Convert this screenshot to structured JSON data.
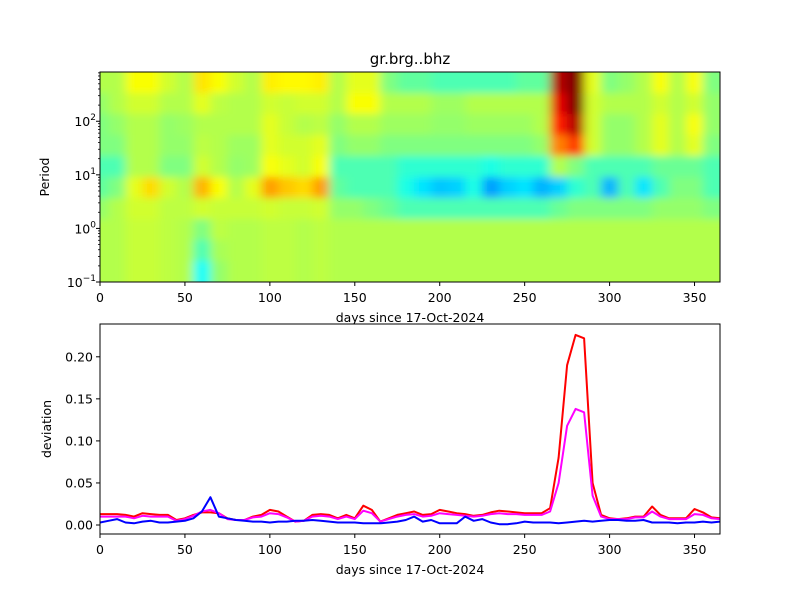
{
  "chart_data": [
    {
      "type": "heatmap",
      "title": "gr.brg..bhz",
      "xlabel": "days since 17-Oct-2024",
      "ylabel": "Period",
      "xlim": [
        0,
        365
      ],
      "ylim": [
        0.1,
        830
      ],
      "yscale": "log",
      "xticks": [
        "0",
        "50",
        "100",
        "150",
        "200",
        "250",
        "300",
        "350"
      ],
      "yticks": [
        {
          "base": "10",
          "exp": "−1"
        },
        {
          "base": "10",
          "exp": "0"
        },
        {
          "base": "10",
          "exp": "1"
        },
        {
          "base": "10",
          "exp": "2"
        }
      ],
      "colormap": "jet",
      "days": [
        0,
        10,
        20,
        30,
        40,
        50,
        60,
        70,
        80,
        90,
        100,
        110,
        120,
        130,
        140,
        150,
        160,
        170,
        180,
        190,
        200,
        210,
        220,
        230,
        240,
        250,
        260,
        270,
        280,
        290,
        300,
        310,
        320,
        330,
        340,
        350,
        360
      ],
      "periods": [
        500,
        200,
        60,
        25,
        12,
        7,
        3,
        1,
        0.3,
        0.12
      ],
      "values": [
        [
          0.55,
          0.55,
          0.62,
          0.62,
          0.58,
          0.55,
          0.65,
          0.62,
          0.58,
          0.55,
          0.64,
          0.63,
          0.63,
          0.64,
          0.55,
          0.6,
          0.6,
          0.5,
          0.47,
          0.47,
          0.45,
          0.45,
          0.45,
          0.45,
          0.45,
          0.47,
          0.47,
          0.95,
          1.0,
          0.6,
          0.5,
          0.52,
          0.55,
          0.62,
          0.55,
          0.62,
          0.5
        ],
        [
          0.52,
          0.55,
          0.58,
          0.58,
          0.55,
          0.55,
          0.6,
          0.56,
          0.55,
          0.55,
          0.58,
          0.57,
          0.58,
          0.58,
          0.55,
          0.62,
          0.62,
          0.55,
          0.55,
          0.55,
          0.53,
          0.53,
          0.55,
          0.55,
          0.55,
          0.55,
          0.55,
          0.9,
          1.0,
          0.58,
          0.55,
          0.55,
          0.55,
          0.58,
          0.55,
          0.58,
          0.52
        ],
        [
          0.5,
          0.52,
          0.55,
          0.55,
          0.52,
          0.53,
          0.55,
          0.55,
          0.55,
          0.55,
          0.6,
          0.57,
          0.55,
          0.56,
          0.52,
          0.55,
          0.55,
          0.53,
          0.53,
          0.53,
          0.52,
          0.52,
          0.53,
          0.53,
          0.53,
          0.53,
          0.55,
          0.85,
          0.95,
          0.58,
          0.52,
          0.52,
          0.55,
          0.6,
          0.55,
          0.62,
          0.52
        ],
        [
          0.5,
          0.5,
          0.55,
          0.55,
          0.52,
          0.52,
          0.56,
          0.55,
          0.53,
          0.53,
          0.6,
          0.58,
          0.58,
          0.6,
          0.5,
          0.52,
          0.52,
          0.5,
          0.5,
          0.5,
          0.5,
          0.5,
          0.5,
          0.5,
          0.5,
          0.5,
          0.52,
          0.75,
          0.82,
          0.58,
          0.52,
          0.52,
          0.55,
          0.6,
          0.55,
          0.6,
          0.5
        ],
        [
          0.45,
          0.45,
          0.55,
          0.55,
          0.5,
          0.5,
          0.58,
          0.55,
          0.52,
          0.53,
          0.62,
          0.6,
          0.58,
          0.62,
          0.45,
          0.45,
          0.45,
          0.45,
          0.42,
          0.42,
          0.42,
          0.42,
          0.42,
          0.4,
          0.42,
          0.42,
          0.42,
          0.55,
          0.5,
          0.45,
          0.45,
          0.45,
          0.45,
          0.48,
          0.48,
          0.48,
          0.45
        ],
        [
          0.47,
          0.5,
          0.6,
          0.66,
          0.58,
          0.55,
          0.7,
          0.62,
          0.55,
          0.6,
          0.72,
          0.68,
          0.66,
          0.72,
          0.47,
          0.45,
          0.45,
          0.45,
          0.4,
          0.35,
          0.32,
          0.33,
          0.4,
          0.28,
          0.33,
          0.35,
          0.3,
          0.33,
          0.42,
          0.45,
          0.3,
          0.45,
          0.35,
          0.45,
          0.5,
          0.5,
          0.45
        ],
        [
          0.52,
          0.55,
          0.58,
          0.58,
          0.56,
          0.56,
          0.58,
          0.57,
          0.57,
          0.57,
          0.58,
          0.57,
          0.57,
          0.58,
          0.52,
          0.52,
          0.5,
          0.48,
          0.45,
          0.45,
          0.45,
          0.45,
          0.45,
          0.45,
          0.45,
          0.45,
          0.45,
          0.48,
          0.5,
          0.5,
          0.5,
          0.5,
          0.5,
          0.52,
          0.52,
          0.52,
          0.5
        ],
        [
          0.55,
          0.55,
          0.57,
          0.57,
          0.56,
          0.55,
          0.5,
          0.56,
          0.55,
          0.55,
          0.56,
          0.56,
          0.55,
          0.56,
          0.55,
          0.55,
          0.55,
          0.55,
          0.55,
          0.55,
          0.55,
          0.55,
          0.55,
          0.55,
          0.55,
          0.55,
          0.55,
          0.55,
          0.55,
          0.55,
          0.55,
          0.55,
          0.55,
          0.55,
          0.55,
          0.55,
          0.55
        ],
        [
          0.55,
          0.55,
          0.57,
          0.57,
          0.56,
          0.55,
          0.45,
          0.54,
          0.55,
          0.55,
          0.56,
          0.56,
          0.55,
          0.56,
          0.55,
          0.55,
          0.55,
          0.55,
          0.55,
          0.55,
          0.55,
          0.55,
          0.55,
          0.55,
          0.55,
          0.55,
          0.55,
          0.55,
          0.55,
          0.55,
          0.55,
          0.55,
          0.55,
          0.55,
          0.55,
          0.55,
          0.55
        ],
        [
          0.55,
          0.55,
          0.57,
          0.57,
          0.56,
          0.55,
          0.38,
          0.52,
          0.55,
          0.55,
          0.56,
          0.56,
          0.55,
          0.56,
          0.55,
          0.55,
          0.55,
          0.55,
          0.55,
          0.55,
          0.55,
          0.55,
          0.55,
          0.55,
          0.55,
          0.55,
          0.55,
          0.55,
          0.55,
          0.55,
          0.55,
          0.55,
          0.55,
          0.55,
          0.55,
          0.55,
          0.55
        ]
      ]
    },
    {
      "type": "line",
      "xlabel": "days since 17-Oct-2024",
      "ylabel": "deviation",
      "xlim": [
        0,
        365
      ],
      "ylim": [
        -0.0107,
        0.239
      ],
      "xticks": [
        "0",
        "50",
        "100",
        "150",
        "200",
        "250",
        "300",
        "350"
      ],
      "yticks": [
        "0.00",
        "0.05",
        "0.10",
        "0.15",
        "0.20"
      ],
      "x": [
        0,
        5,
        10,
        15,
        20,
        25,
        30,
        35,
        40,
        45,
        50,
        55,
        60,
        65,
        70,
        75,
        80,
        85,
        90,
        95,
        100,
        105,
        110,
        115,
        120,
        125,
        130,
        135,
        140,
        145,
        150,
        155,
        160,
        165,
        170,
        175,
        180,
        185,
        190,
        195,
        200,
        205,
        210,
        215,
        220,
        225,
        230,
        235,
        240,
        245,
        250,
        255,
        260,
        265,
        270,
        275,
        280,
        285,
        290,
        295,
        300,
        305,
        310,
        315,
        320,
        325,
        330,
        335,
        340,
        345,
        350,
        355,
        360,
        365
      ],
      "series": [
        {
          "color": "#ff0000",
          "values": [
            0.013,
            0.013,
            0.013,
            0.012,
            0.01,
            0.014,
            0.013,
            0.012,
            0.012,
            0.006,
            0.008,
            0.012,
            0.015,
            0.015,
            0.014,
            0.008,
            0.006,
            0.006,
            0.01,
            0.012,
            0.018,
            0.016,
            0.01,
            0.004,
            0.005,
            0.012,
            0.013,
            0.012,
            0.008,
            0.012,
            0.008,
            0.023,
            0.018,
            0.004,
            0.008,
            0.012,
            0.014,
            0.016,
            0.012,
            0.013,
            0.018,
            0.016,
            0.014,
            0.013,
            0.011,
            0.012,
            0.015,
            0.017,
            0.016,
            0.015,
            0.014,
            0.014,
            0.014,
            0.02,
            0.08,
            0.19,
            0.226,
            0.222,
            0.05,
            0.012,
            0.008,
            0.007,
            0.008,
            0.01,
            0.01,
            0.022,
            0.012,
            0.008,
            0.008,
            0.008,
            0.019,
            0.015,
            0.009,
            0.008
          ]
        },
        {
          "color": "#ff00ff",
          "values": [
            0.01,
            0.01,
            0.01,
            0.01,
            0.008,
            0.011,
            0.01,
            0.01,
            0.01,
            0.005,
            0.007,
            0.011,
            0.016,
            0.018,
            0.014,
            0.007,
            0.006,
            0.006,
            0.009,
            0.01,
            0.014,
            0.013,
            0.009,
            0.004,
            0.005,
            0.01,
            0.011,
            0.01,
            0.007,
            0.01,
            0.007,
            0.017,
            0.014,
            0.004,
            0.007,
            0.01,
            0.012,
            0.013,
            0.01,
            0.011,
            0.014,
            0.013,
            0.012,
            0.011,
            0.01,
            0.011,
            0.013,
            0.014,
            0.013,
            0.013,
            0.012,
            0.012,
            0.012,
            0.016,
            0.05,
            0.118,
            0.138,
            0.134,
            0.035,
            0.01,
            0.007,
            0.007,
            0.007,
            0.009,
            0.009,
            0.016,
            0.01,
            0.007,
            0.007,
            0.007,
            0.013,
            0.012,
            0.008,
            0.007
          ]
        },
        {
          "color": "#0000ff",
          "values": [
            0.003,
            0.005,
            0.007,
            0.003,
            0.002,
            0.004,
            0.005,
            0.003,
            0.003,
            0.004,
            0.005,
            0.008,
            0.016,
            0.033,
            0.01,
            0.008,
            0.006,
            0.005,
            0.004,
            0.004,
            0.003,
            0.004,
            0.004,
            0.005,
            0.005,
            0.006,
            0.005,
            0.004,
            0.003,
            0.003,
            0.003,
            0.002,
            0.002,
            0.002,
            0.003,
            0.004,
            0.006,
            0.01,
            0.004,
            0.006,
            0.002,
            0.002,
            0.002,
            0.01,
            0.005,
            0.007,
            0.003,
            0.001,
            0.001,
            0.002,
            0.004,
            0.003,
            0.003,
            0.003,
            0.002,
            0.003,
            0.004,
            0.005,
            0.004,
            0.005,
            0.006,
            0.006,
            0.005,
            0.005,
            0.006,
            0.003,
            0.003,
            0.003,
            0.002,
            0.003,
            0.003,
            0.004,
            0.003,
            0.004
          ]
        }
      ]
    }
  ]
}
